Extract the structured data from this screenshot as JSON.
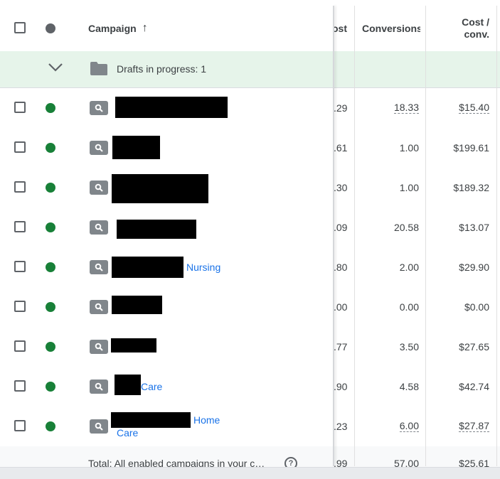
{
  "header": {
    "campaign_label": "Campaign",
    "sort_arrow": "↑",
    "cost_label": "ost",
    "conversions_label": "Conversions",
    "cost_conv_line1": "Cost /",
    "cost_conv_line2": "conv."
  },
  "drafts": {
    "label": "Drafts in progress: 1"
  },
  "rows": [
    {
      "name_suffix": "",
      "name_suffix_2": "",
      "cost": ".29",
      "conversions": "18.33",
      "cost_conv": "$15.40"
    },
    {
      "name_suffix": "",
      "name_suffix_2": "",
      "cost": ".61",
      "conversions": "1.00",
      "cost_conv": "$199.61"
    },
    {
      "name_suffix": "",
      "name_suffix_2": "",
      "cost": ".30",
      "conversions": "1.00",
      "cost_conv": "$189.32"
    },
    {
      "name_suffix": "",
      "name_suffix_2": "",
      "cost": ".09",
      "conversions": "20.58",
      "cost_conv": "$13.07"
    },
    {
      "name_suffix": "Nursing",
      "name_suffix_2": "",
      "cost": ".80",
      "conversions": "2.00",
      "cost_conv": "$29.90"
    },
    {
      "name_suffix": "",
      "name_suffix_2": "",
      "cost": ".00",
      "conversions": "0.00",
      "cost_conv": "$0.00"
    },
    {
      "name_suffix": "",
      "name_suffix_2": "",
      "cost": ".77",
      "conversions": "3.50",
      "cost_conv": "$27.65"
    },
    {
      "name_suffix": "Care",
      "name_suffix_2": "",
      "cost": ".90",
      "conversions": "4.58",
      "cost_conv": "$42.74"
    },
    {
      "name_suffix": "Home",
      "name_suffix_2": "Care",
      "cost": ".23",
      "conversions": "6.00",
      "cost_conv": "$27.87"
    }
  ],
  "total": {
    "label": "Total: All enabled campaigns in your c…",
    "help": "?",
    "cost": ".99",
    "conversions": "57.00",
    "cost_conv": "$25.61"
  },
  "colors": {
    "enabled_status": "#188038",
    "link": "#1a73e8",
    "draft_bg": "#e6f4ea"
  },
  "icons": {
    "status_header": "status-dot-icon",
    "drafts_toggle": "chevron-down-icon",
    "drafts_folder": "folder-icon",
    "campaign_type": "search-icon",
    "help": "help-icon"
  }
}
